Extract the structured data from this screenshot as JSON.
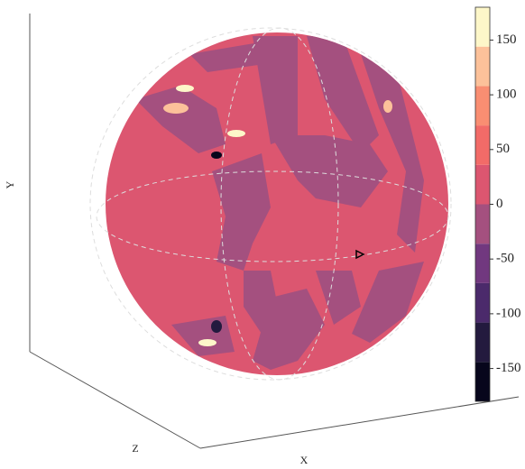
{
  "chart_data": {
    "type": "sphere",
    "xlabel": "X",
    "ylabel": "Y",
    "zlabel": "Z",
    "colorbar": {
      "lim": [
        -180,
        180
      ],
      "bounds": [
        -180,
        -144,
        -108,
        -72,
        -36,
        0,
        36,
        72,
        108,
        144,
        180
      ],
      "colors": [
        "#07061c",
        "#231a3e",
        "#4b2a6b",
        "#71387f",
        "#a4507f",
        "#dc5670",
        "#f26b68",
        "#f98e72",
        "#fcc19a",
        "#fdf7c9"
      ],
      "ticks": [
        -150,
        -100,
        -50,
        0,
        50,
        100,
        150
      ]
    }
  }
}
